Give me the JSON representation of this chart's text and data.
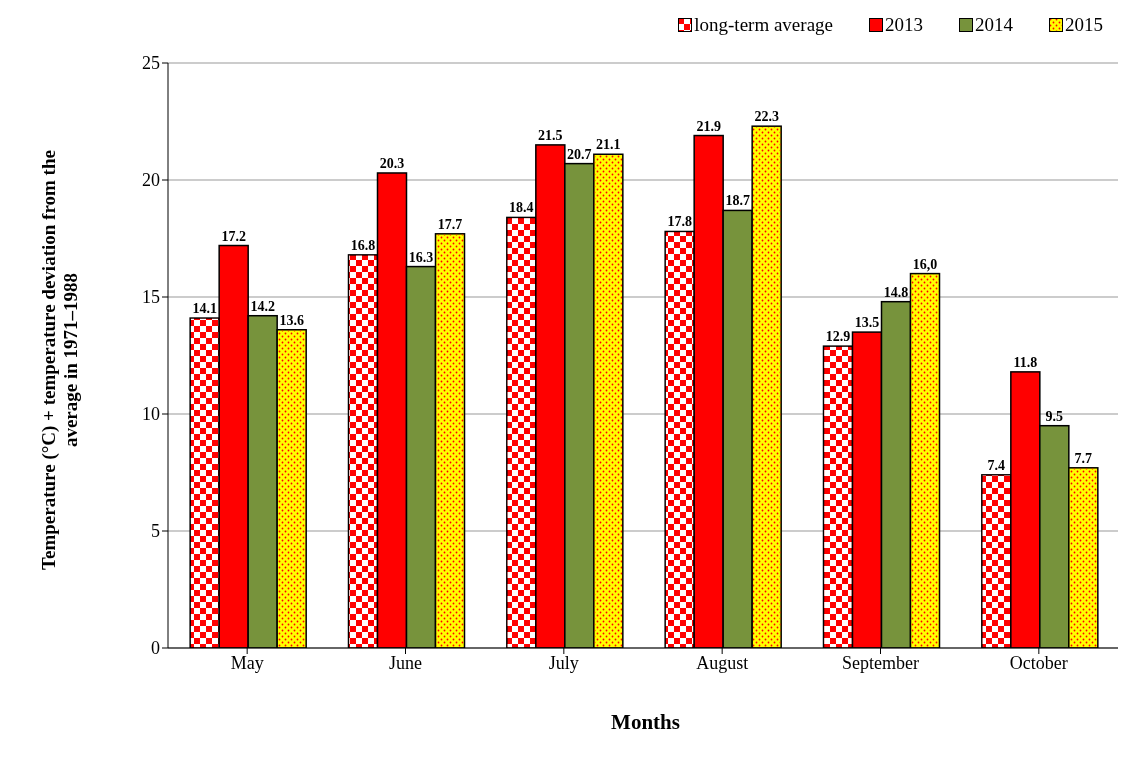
{
  "chart_data": {
    "type": "bar",
    "xlabel": "Months",
    "ylabel": "Temperature  (°C) + temperature deviation from the average in 1971–1988",
    "categories": [
      "May",
      "June",
      "July",
      "August",
      "September",
      "October"
    ],
    "series": [
      {
        "name": "long-term average",
        "color": "#ff0000",
        "values": [
          14.1,
          16.8,
          18.4,
          17.8,
          12.9,
          7.4
        ],
        "value_labels": [
          "14.1",
          "16.8",
          "18.4",
          "17.8",
          "12.9",
          "7.4"
        ]
      },
      {
        "name": "2013",
        "color": "#ff0000",
        "values": [
          17.2,
          20.3,
          21.5,
          21.9,
          13.5,
          11.8
        ],
        "value_labels": [
          "17.2",
          "20.3",
          "21.5",
          "21.9",
          "13.5",
          "11.8"
        ]
      },
      {
        "name": "2014",
        "color": "#77933c",
        "values": [
          14.2,
          16.3,
          20.7,
          18.7,
          14.8,
          9.5
        ],
        "value_labels": [
          "14.2",
          "16.3",
          "20.7",
          "18.7",
          "14.8",
          "9.5"
        ]
      },
      {
        "name": "2015",
        "color": "#ffff00",
        "values": [
          13.6,
          17.7,
          21.1,
          22.3,
          16.0,
          7.7
        ],
        "value_labels": [
          "13.6",
          "17.7",
          "21.1",
          "22.3",
          "16,0",
          "7.7"
        ]
      }
    ],
    "ylim": [
      0,
      25
    ],
    "yticks": [
      0,
      5,
      10,
      15,
      20,
      25
    ],
    "grid": "y",
    "legend": "top right"
  }
}
